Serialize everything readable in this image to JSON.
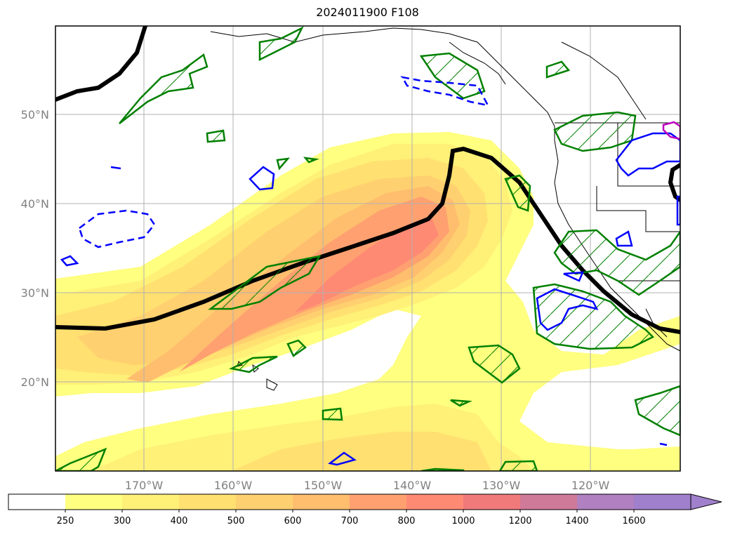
{
  "title": "2024011900 F108",
  "map": {
    "longitude_labels": [
      "170°W",
      "160°W",
      "150°W",
      "140°W",
      "130°W",
      "120°W"
    ],
    "latitude_labels": [
      "50°N",
      "40°N",
      "30°N",
      "20°N"
    ],
    "colors": {
      "contour_black": "#000000",
      "contour_green": "#008000",
      "contour_blue": "#0000ff",
      "contour_magenta": "#c000c0",
      "grid": "#b0b0b0",
      "coast": "#000000"
    }
  },
  "colorbar": {
    "ticks": [
      "250",
      "300",
      "400",
      "500",
      "600",
      "700",
      "800",
      "1000",
      "1200",
      "1400",
      "1600"
    ],
    "colors": [
      "#ffffff",
      "#ffff80",
      "#fff078",
      "#ffe070",
      "#ffd070",
      "#ffbe6e",
      "#ffa070",
      "#ff8a74",
      "#f07a7a",
      "#d07a9a",
      "#b080c0",
      "#a080cc"
    ],
    "extend": "max"
  }
}
